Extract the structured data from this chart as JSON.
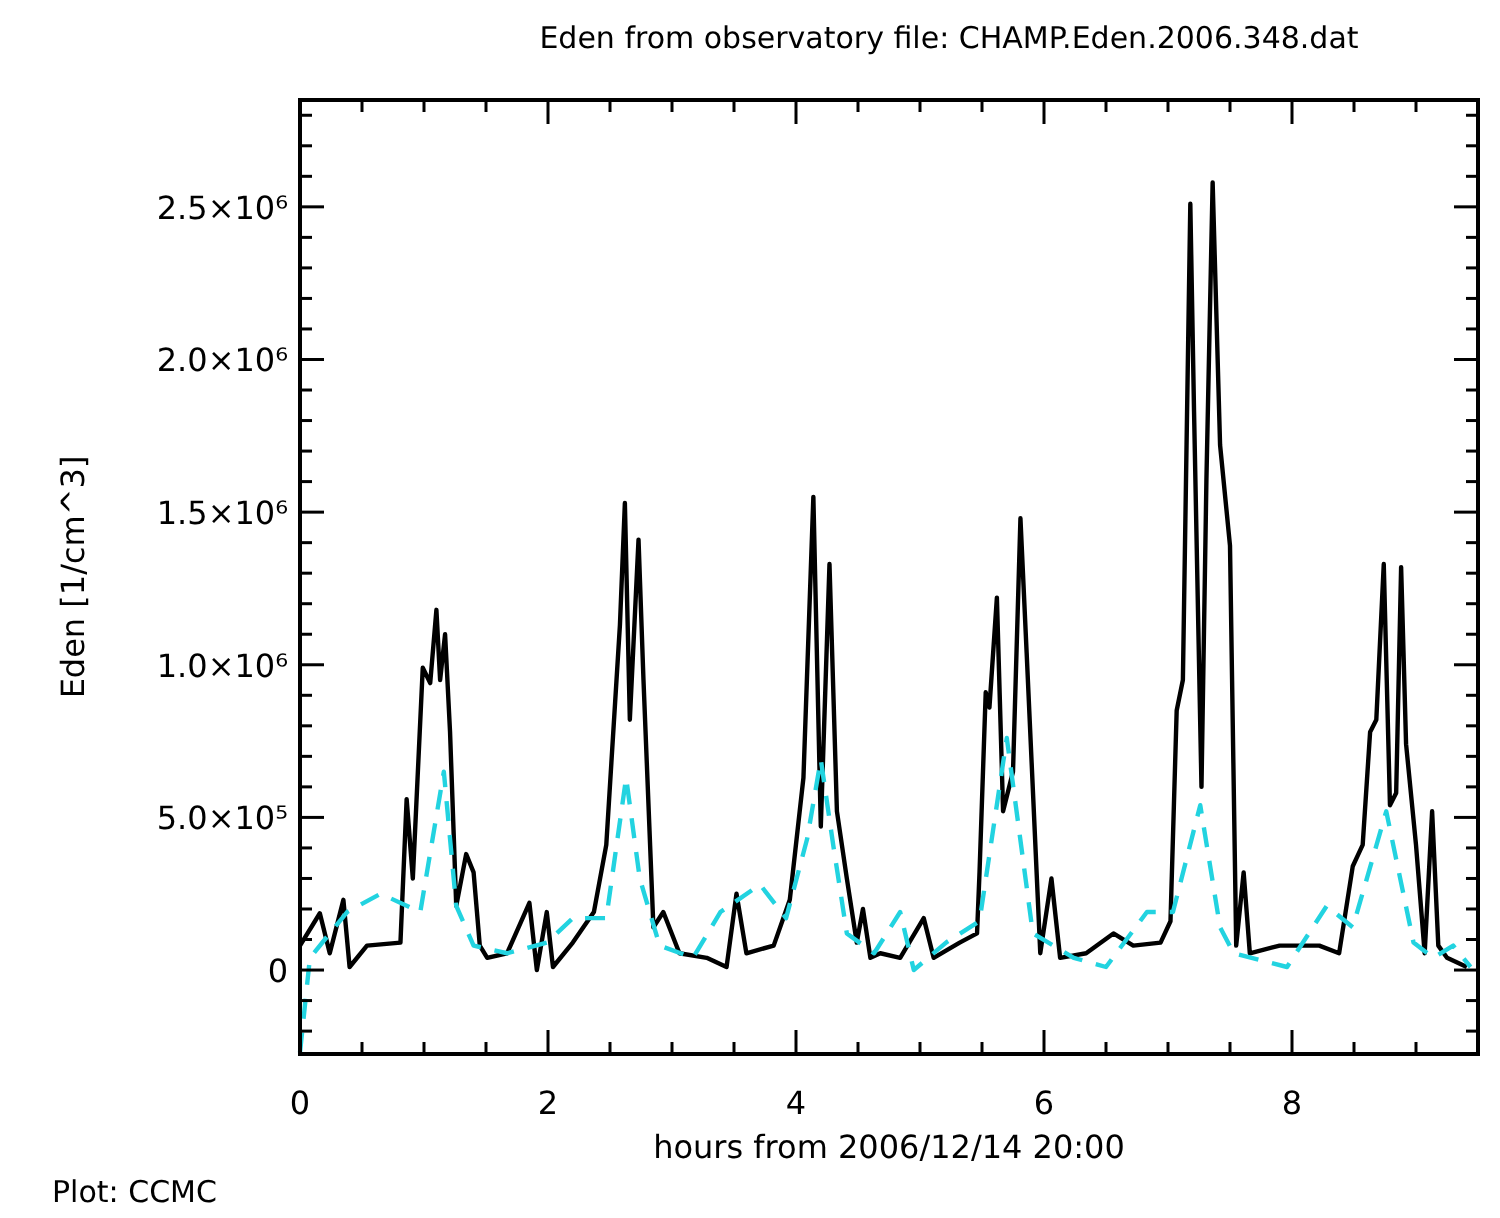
{
  "chart_data": {
    "type": "line",
    "title": "Eden from observatory file: CHAMP.Eden.2006.348.dat",
    "xlabel": "hours from 2006/12/14 20:00",
    "ylabel": "Eden [1/cm^3]",
    "annotations": [
      "Plot: CCMC"
    ],
    "xlim": [
      0,
      9.5
    ],
    "ylim": [
      -275000,
      2850000
    ],
    "xticks": [
      0,
      {
        "value": 0.5,
        "label": null
      },
      {
        "value": 1,
        "label": null
      },
      {
        "value": 1.5,
        "label": null
      },
      2,
      {
        "value": 2.5,
        "label": null
      },
      {
        "value": 3,
        "label": null
      },
      {
        "value": 3.5,
        "label": null
      },
      4,
      {
        "value": 4.5,
        "label": null
      },
      {
        "value": 5,
        "label": null
      },
      {
        "value": 5.5,
        "label": null
      },
      6,
      {
        "value": 6.5,
        "label": null
      },
      {
        "value": 7,
        "label": null
      },
      {
        "value": 7.5,
        "label": null
      },
      8,
      {
        "value": 8.5,
        "label": null
      },
      {
        "value": 9,
        "label": null
      },
      {
        "value": 9.5,
        "label": null
      }
    ],
    "yticks": [
      {
        "value": -200000,
        "label": null
      },
      {
        "value": -100000,
        "label": null
      },
      0,
      {
        "value": 100000,
        "label": null
      },
      {
        "value": 200000,
        "label": null
      },
      {
        "value": 300000,
        "label": null
      },
      {
        "value": 400000,
        "label": null
      },
      {
        "value": 500000,
        "label": "5.0×10⁵"
      },
      {
        "value": 600000,
        "label": null
      },
      {
        "value": 700000,
        "label": null
      },
      {
        "value": 800000,
        "label": null
      },
      {
        "value": 900000,
        "label": null
      },
      {
        "value": 1000000,
        "label": "1.0×10⁶"
      },
      {
        "value": 1100000,
        "label": null
      },
      {
        "value": 1200000,
        "label": null
      },
      {
        "value": 1300000,
        "label": null
      },
      {
        "value": 1400000,
        "label": null
      },
      {
        "value": 1500000,
        "label": "1.5×10⁶"
      },
      {
        "value": 1600000,
        "label": null
      },
      {
        "value": 1700000,
        "label": null
      },
      {
        "value": 1800000,
        "label": null
      },
      {
        "value": 1900000,
        "label": null
      },
      {
        "value": 2000000,
        "label": "2.0×10⁶"
      },
      {
        "value": 2100000,
        "label": null
      },
      {
        "value": 2200000,
        "label": null
      },
      {
        "value": 2300000,
        "label": null
      },
      {
        "value": 2400000,
        "label": null
      },
      {
        "value": 2500000,
        "label": "2.5×10⁶"
      },
      {
        "value": 2600000,
        "label": null
      },
      {
        "value": 2700000,
        "label": null
      },
      {
        "value": 2800000,
        "label": null
      }
    ],
    "grid": false,
    "marker": "none",
    "series": [
      {
        "color": "#000000",
        "line_style": "solid",
        "x": [
          0,
          0.16,
          0.24,
          0.35,
          0.4,
          0.54,
          0.81,
          0.86,
          0.91,
          0.99,
          1.05,
          1.1,
          1.13,
          1.17,
          1.21,
          1.26,
          1.34,
          1.4,
          1.45,
          1.51,
          1.67,
          1.85,
          1.91,
          1.99,
          2.04,
          2.2,
          2.37,
          2.47,
          2.58,
          2.62,
          2.66,
          2.73,
          2.77,
          2.85,
          2.93,
          3.06,
          3.28,
          3.44,
          3.52,
          3.6,
          3.82,
          3.95,
          4.06,
          4.14,
          4.2,
          4.27,
          4.33,
          4.41,
          4.49,
          4.54,
          4.6,
          4.68,
          4.84,
          5.03,
          5.11,
          5.32,
          5.46,
          5.48,
          5.53,
          5.56,
          5.62,
          5.67,
          5.75,
          5.81,
          5.86,
          5.97,
          6.06,
          6.13,
          6.34,
          6.56,
          6.72,
          6.94,
          7.02,
          7.07,
          7.12,
          7.18,
          7.21,
          7.27,
          7.31,
          7.36,
          7.42,
          7.5,
          7.55,
          7.61,
          7.66,
          7.9,
          8.22,
          8.38,
          8.49,
          8.57,
          8.63,
          8.68,
          8.74,
          8.79,
          8.84,
          8.88,
          8.92,
          9,
          9.07,
          9.13,
          9.18,
          9.25,
          9.41
        ],
        "values": [
          80000,
          186000,
          55000,
          230000,
          10000,
          80000,
          90000,
          560000,
          300000,
          990000,
          940000,
          1180000,
          950000,
          1100000,
          780000,
          210000,
          380000,
          320000,
          80000,
          40000,
          55000,
          220000,
          0,
          190000,
          10000,
          90000,
          190000,
          410000,
          1130000,
          1530000,
          820000,
          1410000,
          950000,
          140000,
          190000,
          55000,
          40000,
          10000,
          250000,
          55000,
          80000,
          230000,
          630000,
          1550000,
          470000,
          1330000,
          520000,
          300000,
          90000,
          200000,
          40000,
          55000,
          40000,
          170000,
          40000,
          90000,
          120000,
          320000,
          910000,
          860000,
          1220000,
          520000,
          650000,
          1480000,
          1040000,
          55000,
          300000,
          40000,
          55000,
          120000,
          80000,
          90000,
          160000,
          850000,
          950000,
          2510000,
          1830000,
          600000,
          1610000,
          2580000,
          1720000,
          1390000,
          80000,
          320000,
          55000,
          80000,
          80000,
          55000,
          340000,
          410000,
          780000,
          820000,
          1330000,
          540000,
          580000,
          1320000,
          740000,
          410000,
          55000,
          520000,
          80000,
          40000,
          10000
        ]
      },
      {
        "color": "#22d3e0",
        "line_style": "dashed",
        "x": [
          0,
          0.08,
          0.38,
          0.65,
          0.97,
          1.16,
          1.26,
          1.4,
          1.67,
          1.99,
          2.2,
          2.47,
          2.63,
          2.74,
          2.9,
          3.17,
          3.39,
          3.71,
          3.92,
          4.09,
          4.2,
          4.3,
          4.41,
          4.63,
          4.84,
          4.95,
          5.21,
          5.48,
          5.7,
          5.91,
          6.24,
          6.5,
          6.83,
          7.04,
          7.26,
          7.42,
          7.53,
          7.96,
          8.28,
          8.49,
          8.76,
          8.98,
          9.14,
          9.3,
          9.44
        ],
        "values": [
          -270000,
          40000,
          190000,
          250000,
          190000,
          650000,
          210000,
          80000,
          55000,
          90000,
          170000,
          170000,
          630000,
          300000,
          80000,
          40000,
          190000,
          280000,
          170000,
          430000,
          690000,
          410000,
          120000,
          55000,
          190000,
          0,
          90000,
          160000,
          760000,
          120000,
          40000,
          10000,
          190000,
          190000,
          540000,
          140000,
          55000,
          10000,
          210000,
          140000,
          520000,
          90000,
          40000,
          80000,
          10000
        ]
      }
    ]
  }
}
